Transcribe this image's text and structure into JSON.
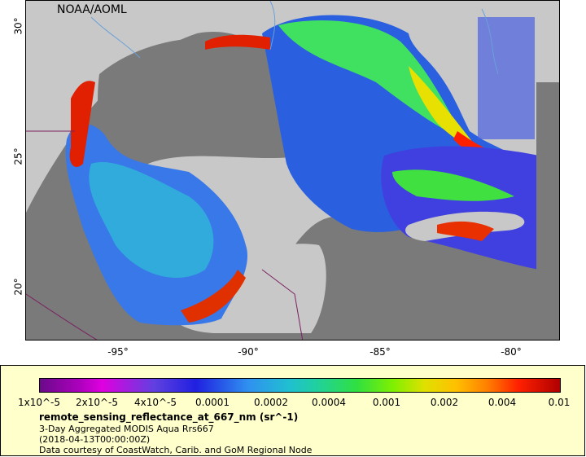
{
  "map": {
    "credit": "NOAA/AOML",
    "lon_ticks": [
      "-95°",
      "-90°",
      "-85°",
      "-80°"
    ],
    "lat_ticks": [
      "30°",
      "25°",
      "20°"
    ],
    "colors": {
      "land": "#c8c8c8",
      "no_data": "#7a7a7a",
      "rivers": "#6aa0d8",
      "borders": "#7a2060"
    }
  },
  "legend": {
    "colorbar_labels": [
      "1x10^-5",
      "2x10^-5",
      "4x10^-5",
      "0.0001",
      "0.0002",
      "0.0004",
      "0.001",
      "0.002",
      "0.004",
      "0.01"
    ],
    "variable": "remote_sensing_reflectance_at_667_nm (sr^-1)",
    "product": "3-Day Aggregated MODIS Aqua Rrs667",
    "date": "(2018-04-13T00:00:00Z)",
    "courtesy": "Data courtesy of CoastWatch, Carib. and GoM Regional Node"
  }
}
